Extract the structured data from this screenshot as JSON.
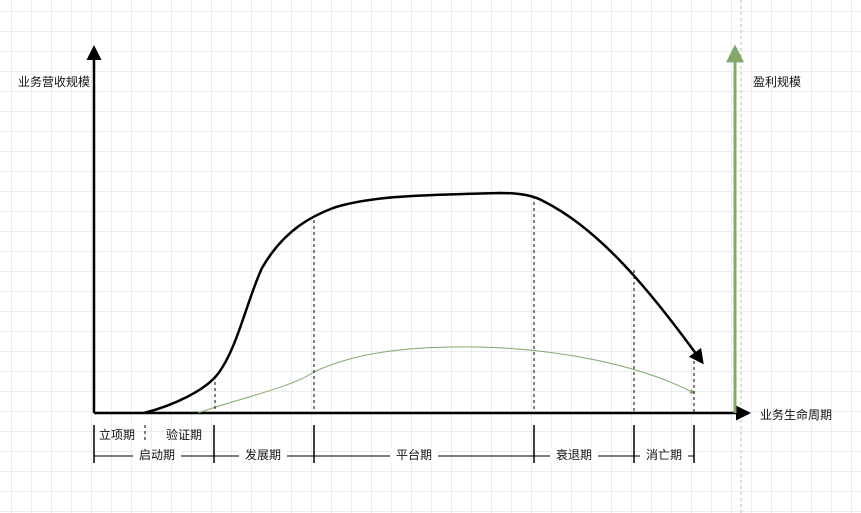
{
  "diagram": {
    "y_axis_label": "业务营收规模",
    "x_axis_label": "业务生命周期",
    "profit_axis_label": "盈利规模",
    "sub_stages": [
      {
        "id": "lixiang",
        "label": "立项期"
      },
      {
        "id": "yanzheng",
        "label": "验证期"
      }
    ],
    "stages": [
      {
        "id": "qidong",
        "label": "启动期"
      },
      {
        "id": "fazhan",
        "label": "发展期"
      },
      {
        "id": "pingtai",
        "label": "平台期"
      },
      {
        "id": "shuaitui",
        "label": "衰退期"
      },
      {
        "id": "xiaowang",
        "label": "消亡期"
      }
    ],
    "colors": {
      "axis": "#000000",
      "revenue_curve": "#000000",
      "profit_curve": "#82a86c",
      "profit_axis": "#82a86c",
      "dashed": "#000000",
      "grid": "#ececec"
    }
  }
}
